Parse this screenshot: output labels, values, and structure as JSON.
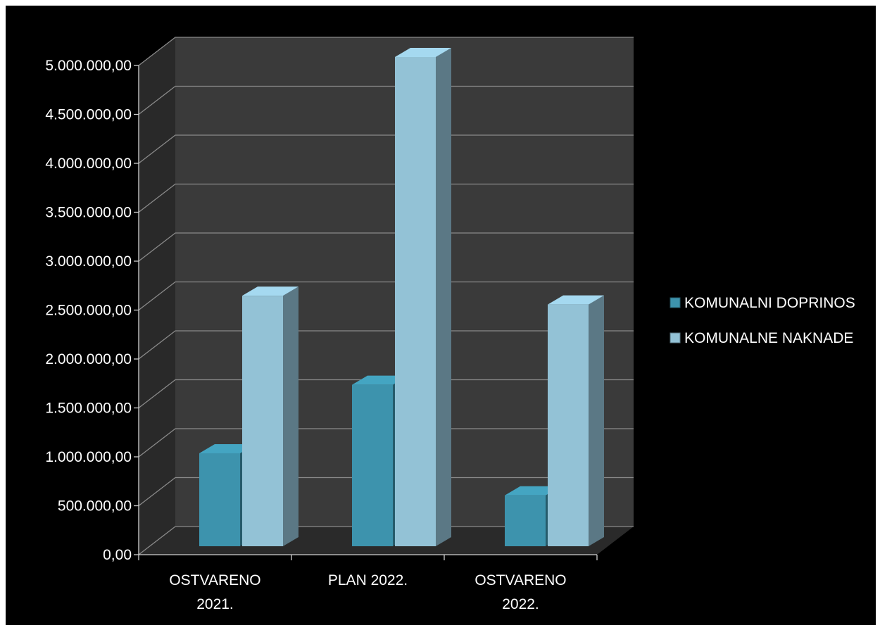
{
  "chart_data": {
    "type": "bar",
    "style": "3d-clustered-column",
    "categories": [
      [
        "OSTVARENO",
        "2021."
      ],
      [
        "PLAN 2022."
      ],
      [
        "OSTVARENO",
        "2022."
      ]
    ],
    "series": [
      {
        "name": "KOMUNALNI DOPRINOS",
        "values": [
          950000,
          1650000,
          520000
        ],
        "color": "#3d93ad"
      },
      {
        "name": "KOMUNALNE NAKNADE",
        "values": [
          2560000,
          5000000,
          2470000
        ],
        "color": "#93c2d6"
      }
    ],
    "ylim": [
      0,
      5000000
    ],
    "yticks": [
      "0,00",
      "500.000,00",
      "1.000.000,00",
      "1.500.000,00",
      "2.000.000,00",
      "2.500.000,00",
      "3.000.000,00",
      "3.500.000,00",
      "4.000.000,00",
      "4.500.000,00",
      "5.000.000,00"
    ],
    "grid": true,
    "legend_position": "right",
    "background": "#000000",
    "wall_color": "#3a3a3a",
    "floor_color": "#2a2a2a"
  }
}
